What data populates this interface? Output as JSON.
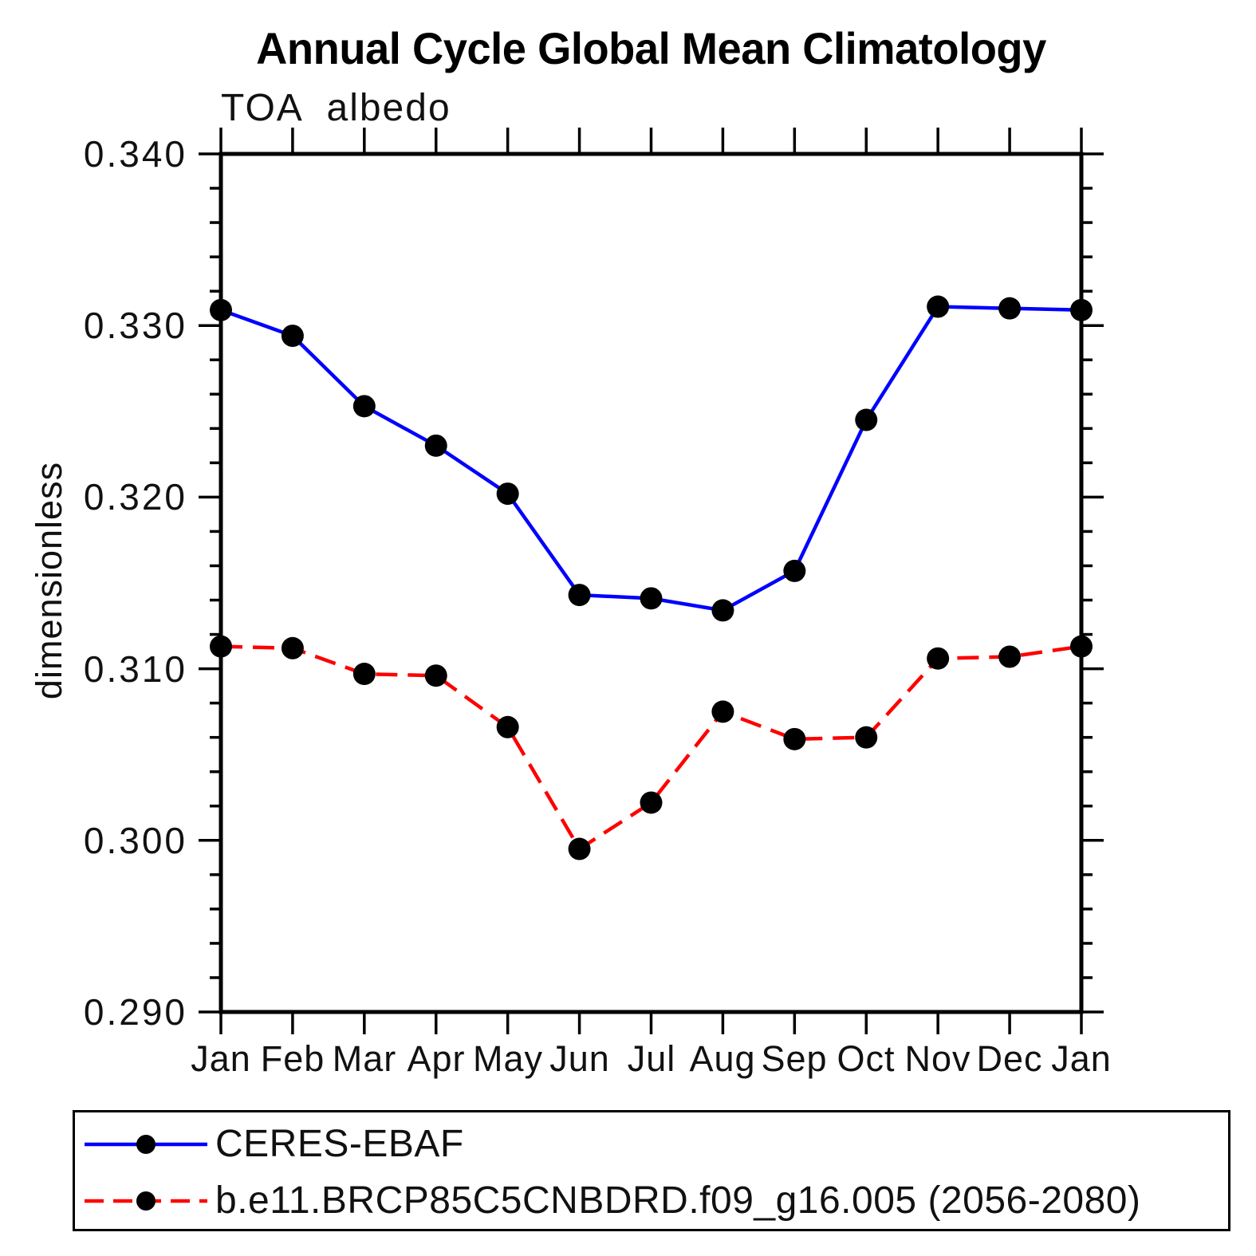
{
  "chart_data": {
    "type": "line",
    "title": "Annual Cycle Global Mean Climatology",
    "subtitle": "TOA albedo",
    "xlabel": "",
    "ylabel": "dimensionless",
    "x_categories": [
      "Jan",
      "Feb",
      "Mar",
      "Apr",
      "May",
      "Jun",
      "Jul",
      "Aug",
      "Sep",
      "Oct",
      "Nov",
      "Dec",
      "Jan"
    ],
    "ylim": [
      0.29,
      0.34
    ],
    "y_major_tick_step": 0.01,
    "y_minor_tick_step": 0.002,
    "y_tick_labels": [
      "0.340",
      "0.330",
      "0.320",
      "0.310",
      "0.300",
      "0.290"
    ],
    "grid": false,
    "legend_position": "bottom",
    "axis_color": "#000000",
    "series": [
      {
        "name": "CERES-EBAF",
        "color": "#0000ff",
        "style": "solid",
        "marker": "filled-circle",
        "marker_color": "#000000",
        "values": [
          0.3309,
          0.3294,
          0.3253,
          0.323,
          0.3202,
          0.3143,
          0.3141,
          0.3134,
          0.3157,
          0.3245,
          0.3311,
          0.331,
          0.3309
        ]
      },
      {
        "name": "b.e11.BRCP85C5CNBDRD.f09_g16.005 (2056-2080)",
        "color": "#ff0000",
        "style": "dashed",
        "marker": "filled-circle",
        "marker_color": "#000000",
        "values": [
          0.3113,
          0.3112,
          0.3097,
          0.3096,
          0.3066,
          0.2995,
          0.3022,
          0.3075,
          0.3059,
          0.306,
          0.3106,
          0.3107,
          0.3113
        ]
      }
    ]
  }
}
